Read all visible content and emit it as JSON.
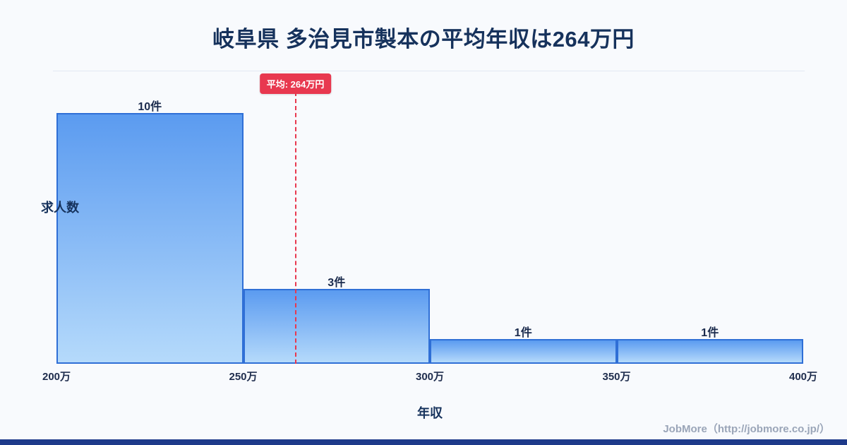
{
  "page": {
    "title": "岐阜県 多治見市製本の平均年収は264万円",
    "footer": "JobMore（http://jobmore.co.jp/）"
  },
  "chart_data": {
    "type": "bar",
    "title": "岐阜県 多治見市製本の平均年収は264万円",
    "xlabel": "年収",
    "ylabel": "求人数",
    "bins": [
      "200万-250万",
      "250万-300万",
      "300万-350万",
      "350万-400万"
    ],
    "x_ticks": [
      "200万",
      "250万",
      "300万",
      "350万",
      "400万"
    ],
    "values": [
      10,
      3,
      1,
      1
    ],
    "bar_labels": [
      "10件",
      "3件",
      "1件",
      "1件"
    ],
    "average": {
      "value": 264,
      "label": "平均: 264万円"
    },
    "x_range": [
      200,
      400
    ],
    "ylim": [
      0,
      11.7
    ],
    "legend": "none",
    "grid": "top-line-only",
    "colors": {
      "bar_fill_top": "#5b9bf0",
      "bar_fill_bottom": "#b5dafb",
      "bar_border": "#2f6fd6",
      "average_line": "#e8384f",
      "title": "#16325c",
      "footer_text": "#9aa5b8",
      "bottom_strip": "#1e3a8a",
      "background": "#f8fafd"
    }
  }
}
